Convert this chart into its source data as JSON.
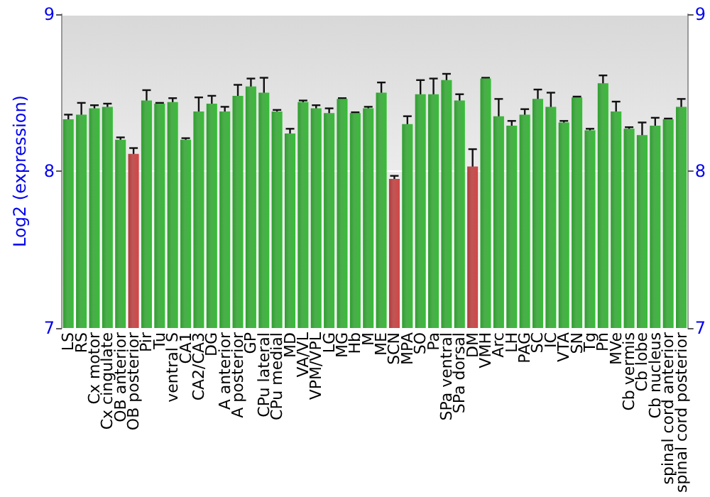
{
  "chart_data": {
    "type": "bar",
    "ylabel": "Log2 (expression)",
    "categories": [
      "LS",
      "RS",
      "Cx motor",
      "Cx cingulate",
      "OB anterior",
      "OB posterior",
      "Pir",
      "Tu",
      "ventral S",
      "CA1",
      "CA2/CA3",
      "DG",
      "A anterior",
      "A posterior",
      "GP",
      "CPu lateral",
      "CPu medial",
      "MD",
      "VA/VL",
      "VPM/VPL",
      "LG",
      "MG",
      "Hb",
      "M",
      "ME",
      "SCN",
      "MPA",
      "SO",
      "Pa",
      "SPa ventral",
      "SPa dorsal",
      "DM",
      "VMH",
      "Arc",
      "LH",
      "PAG",
      "SC",
      "IC",
      "VTA",
      "SN",
      "Tg",
      "Pn",
      "MVe",
      "Cb vermis",
      "Cb lobe",
      "Cb nucleus",
      "spinal cord anterior",
      "spinal cord posterior"
    ],
    "values": [
      8.33,
      8.36,
      8.4,
      8.41,
      8.2,
      8.11,
      8.45,
      8.43,
      8.44,
      8.2,
      8.38,
      8.43,
      8.38,
      8.48,
      8.54,
      8.5,
      8.38,
      8.24,
      8.44,
      8.4,
      8.37,
      8.46,
      8.37,
      8.4,
      8.5,
      7.95,
      8.3,
      8.49,
      8.49,
      8.58,
      8.45,
      8.03,
      8.59,
      8.35,
      8.29,
      8.36,
      8.46,
      8.41,
      8.31,
      8.47,
      8.26,
      8.56,
      8.38,
      8.27,
      8.23,
      8.29,
      8.33,
      8.41
    ],
    "errors": [
      0.03,
      0.075,
      0.02,
      0.02,
      0.015,
      0.037,
      0.066,
      0.005,
      0.025,
      0.01,
      0.09,
      0.05,
      0.03,
      0.07,
      0.05,
      0.095,
      0.01,
      0.03,
      0.01,
      0.02,
      0.03,
      0.005,
      0.005,
      0.01,
      0.065,
      0.02,
      0.05,
      0.09,
      0.1,
      0.04,
      0.04,
      0.11,
      0.005,
      0.11,
      0.03,
      0.035,
      0.06,
      0.09,
      0.01,
      0.005,
      0.01,
      0.05,
      0.063,
      0.01,
      0.08,
      0.05,
      0.005,
      0.05
    ],
    "colors": [
      "#2e9e2e",
      "#2e9e2e",
      "#2e9e2e",
      "#2e9e2e",
      "#2e9e2e",
      "#b23a3a",
      "#2e9e2e",
      "#2e9e2e",
      "#2e9e2e",
      "#2e9e2e",
      "#2e9e2e",
      "#2e9e2e",
      "#2e9e2e",
      "#2e9e2e",
      "#2e9e2e",
      "#2e9e2e",
      "#2e9e2e",
      "#2e9e2e",
      "#2e9e2e",
      "#2e9e2e",
      "#2e9e2e",
      "#2e9e2e",
      "#2e9e2e",
      "#2e9e2e",
      "#2e9e2e",
      "#b23a3a",
      "#2e9e2e",
      "#2e9e2e",
      "#2e9e2e",
      "#2e9e2e",
      "#2e9e2e",
      "#b23a3a",
      "#2e9e2e",
      "#2e9e2e",
      "#2e9e2e",
      "#2e9e2e",
      "#2e9e2e",
      "#2e9e2e",
      "#2e9e2e",
      "#2e9e2e",
      "#2e9e2e",
      "#2e9e2e",
      "#2e9e2e",
      "#2e9e2e",
      "#2e9e2e",
      "#2e9e2e",
      "#2e9e2e",
      "#2e9e2e"
    ],
    "ylim": [
      7,
      9
    ],
    "yticks": [
      7,
      8,
      9
    ],
    "y2lim": [
      7,
      9
    ],
    "y2ticks": [
      7,
      8,
      9
    ],
    "grid": "y"
  }
}
